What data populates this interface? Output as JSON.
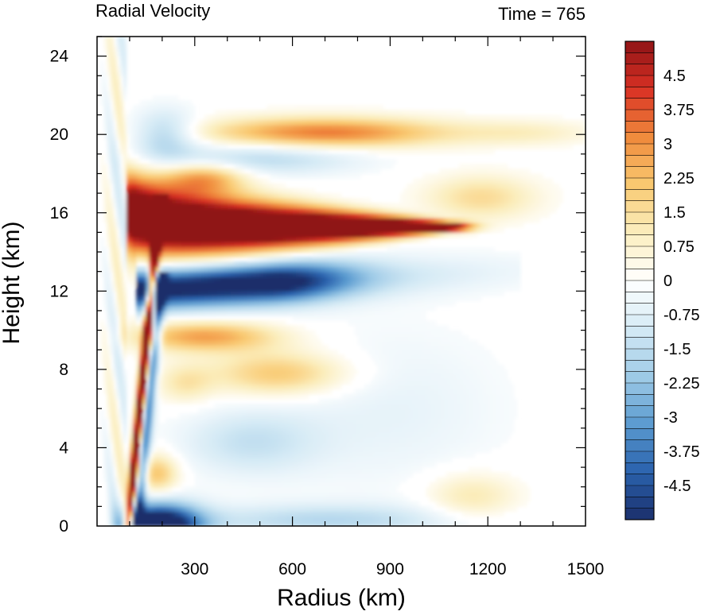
{
  "chart_data": {
    "type": "heatmap",
    "title_left": "Radial Velocity",
    "title_right": "Time = 765",
    "xlabel": "Radius (km)",
    "ylabel": "Height (km)",
    "xlim": [
      0,
      1500
    ],
    "ylim": [
      0,
      25
    ],
    "x_ticks": [
      300,
      600,
      900,
      1200,
      1500
    ],
    "y_ticks": [
      0,
      4,
      8,
      12,
      16,
      20,
      24
    ],
    "colorbar": {
      "min": -5.25,
      "max": 5.25,
      "step": 0.25,
      "tick_values": [
        4.5,
        3.75,
        3,
        2.25,
        1.5,
        0.75,
        0,
        -0.75,
        -1.5,
        -2.25,
        -3,
        -3.75,
        -4.5
      ],
      "tick_labels": [
        "4.5",
        "3.75",
        "3",
        "2.25",
        "1.5",
        "0.75",
        "0",
        "-0.75",
        "-1.5",
        "-2.25",
        "-3",
        "-3.75",
        "-4.5"
      ],
      "colors_neg_to_pos": [
        "#1b2f6b",
        "#2a62ad",
        "#5b9bd0",
        "#9fcbe7",
        "#d5eaf5",
        "#ffffff",
        "#fbeebe",
        "#f9c971",
        "#f08a3c",
        "#d93124",
        "#8f1416"
      ]
    },
    "features": [
      {
        "name": "upper-level outflow",
        "sign": "positive",
        "r_range": [
          100,
          1060
        ],
        "z_range": [
          13.5,
          17
        ],
        "peak": 5.25
      },
      {
        "name": "inflow beneath outflow",
        "sign": "negative",
        "r_range": [
          130,
          800
        ],
        "z_range": [
          11,
          13.5
        ],
        "peak": -5
      },
      {
        "name": "boundary layer inflow",
        "sign": "negative",
        "r_range": [
          60,
          300
        ],
        "z_range": [
          0,
          1.5
        ],
        "peak": -5
      }
    ]
  }
}
